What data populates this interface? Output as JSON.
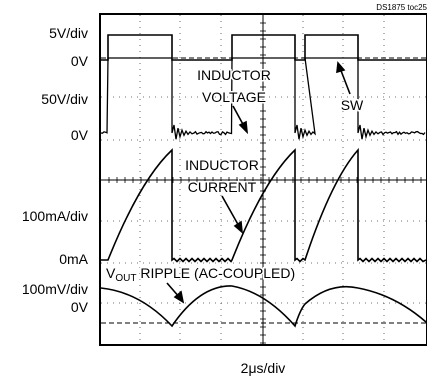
{
  "chart_data": {
    "type": "line",
    "title": "",
    "code": "DS1875 toc25",
    "time_scale": "2μs/div",
    "channels": [
      {
        "scale": "5V/div",
        "zero": "0V"
      },
      {
        "scale": "50V/div",
        "zero": "0V"
      },
      {
        "scale": "100mA/div",
        "zero": "0mA"
      },
      {
        "scale": "100mV/div",
        "zero": "0V"
      }
    ],
    "annotations": {
      "inductor_voltage": [
        "INDUCTOR",
        "VOLTAGE"
      ],
      "sw": "SW",
      "inductor_current": [
        "INDUCTOR",
        "CURRENT"
      ],
      "vout_ripple": {
        "prefix": "V",
        "sub": "OUT",
        "rest": " RIPPLE (AC-COUPLED)"
      }
    },
    "grid": true
  }
}
